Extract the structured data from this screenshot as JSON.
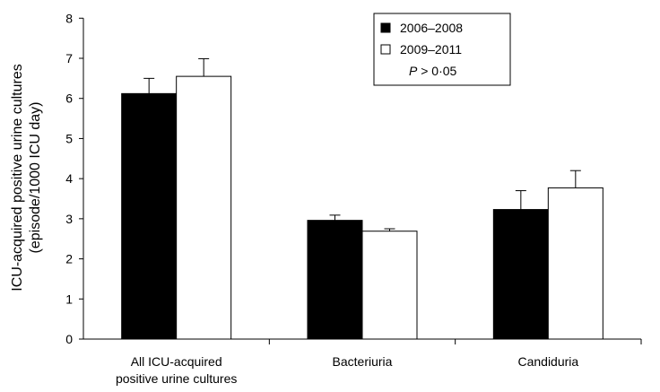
{
  "chart_data": {
    "type": "bar",
    "ylabel_lines": [
      "ICU-acquired positive urine cultures",
      "(episode/1000 ICU day)"
    ],
    "xlabel": "",
    "ylim": [
      0,
      8
    ],
    "yticks": [
      0,
      1,
      2,
      3,
      4,
      5,
      6,
      7,
      8
    ],
    "categories": [
      [
        "All ICU-acquired",
        "positive urine cultures"
      ],
      [
        "Bacteriuria"
      ],
      [
        "Candiduria"
      ]
    ],
    "series": [
      {
        "name": "2006–2008",
        "color": "#000000",
        "values": [
          6.12,
          2.96,
          3.23
        ],
        "error": [
          0.38,
          0.13,
          0.47
        ]
      },
      {
        "name": "2009–2011",
        "color": "#ffffff",
        "values": [
          6.55,
          2.69,
          3.77
        ],
        "error": [
          0.44,
          0.06,
          0.43
        ]
      }
    ],
    "legend_position": "top-right",
    "annotation": {
      "italic": "P",
      "text": " > 0·05"
    },
    "grid": false
  }
}
